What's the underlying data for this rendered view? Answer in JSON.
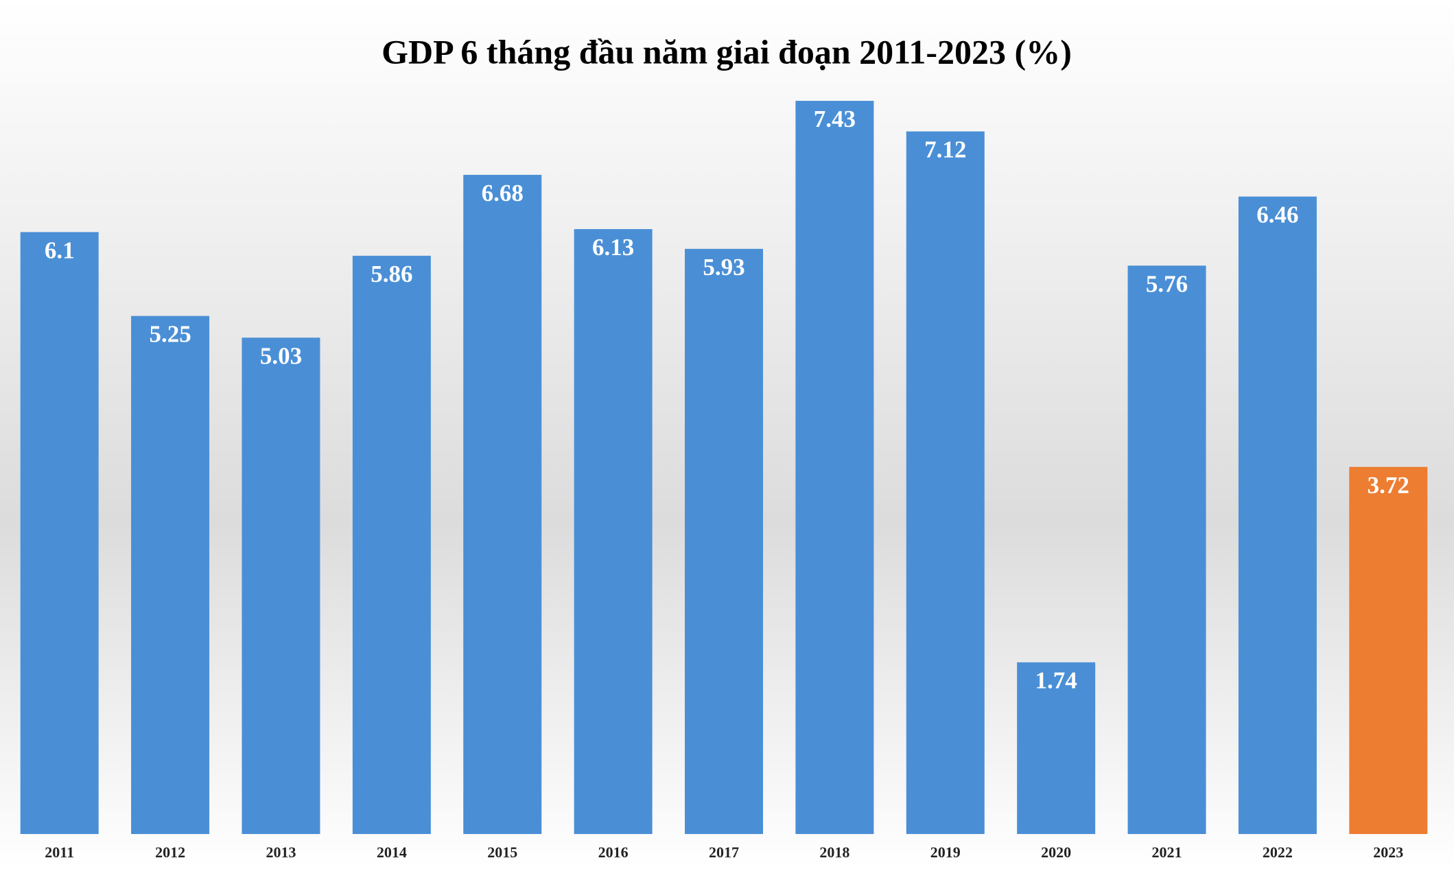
{
  "chart_data": {
    "type": "bar",
    "title": "GDP 6 tháng đầu năm giai đoạn 2011-2023 (%)",
    "categories": [
      "2011",
      "2012",
      "2013",
      "2014",
      "2015",
      "2016",
      "2017",
      "2018",
      "2019",
      "2020",
      "2021",
      "2022",
      "2023"
    ],
    "values": [
      6.1,
      5.25,
      5.03,
      5.86,
      6.68,
      6.13,
      5.93,
      7.43,
      7.12,
      1.74,
      5.76,
      6.46,
      3.72
    ],
    "colors": [
      "#4a8fd6",
      "#4a8fd6",
      "#4a8fd6",
      "#4a8fd6",
      "#4a8fd6",
      "#4a8fd6",
      "#4a8fd6",
      "#4a8fd6",
      "#4a8fd6",
      "#4a8fd6",
      "#4a8fd6",
      "#4a8fd6",
      "#ed7d31"
    ],
    "ylim": [
      0,
      8
    ]
  }
}
